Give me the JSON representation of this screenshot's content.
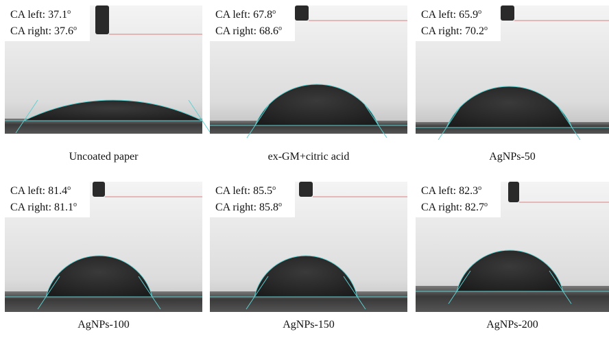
{
  "degree_mark": "o",
  "panels": [
    {
      "ca_left": "CA left: 37.1",
      "ca_right": "CA right: 37.6",
      "caption": "Uncoated paper"
    },
    {
      "ca_left": "CA left: 67.8",
      "ca_right": "CA right: 68.6",
      "caption": "ex-GM+citric acid"
    },
    {
      "ca_left": "CA left: 65.9",
      "ca_right": "CA right: 70.2",
      "caption": "AgNPs-50"
    },
    {
      "ca_left": "CA left: 81.4",
      "ca_right": "CA right: 81.1",
      "caption": "AgNPs-100"
    },
    {
      "ca_left": "CA left: 85.5",
      "ca_right": "CA right: 85.8",
      "caption": "AgNPs-150"
    },
    {
      "ca_left": "CA left: 82.3",
      "ca_right": "CA right: 82.7",
      "caption": "AgNPs-200"
    }
  ]
}
